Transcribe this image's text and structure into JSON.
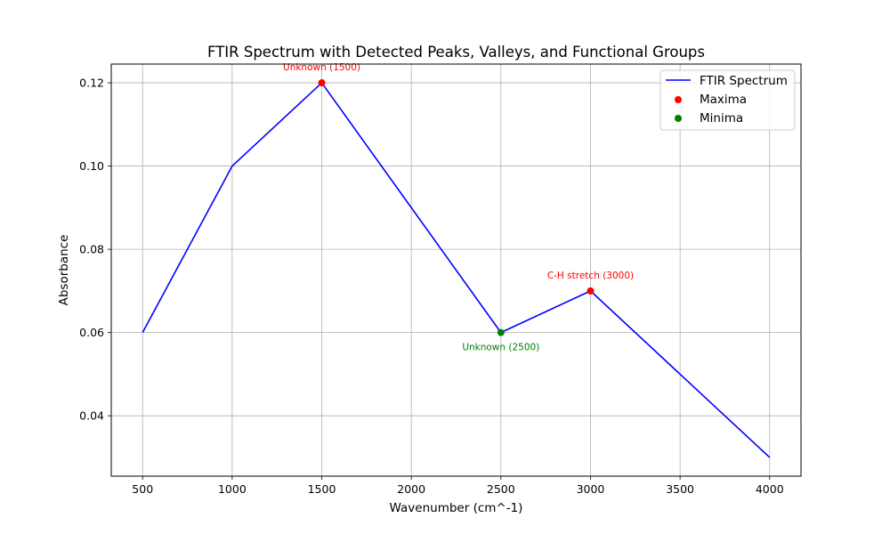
{
  "chart_data": {
    "type": "line",
    "title": "FTIR Spectrum with Detected Peaks, Valleys, and Functional Groups",
    "xlabel": "Wavenumber (cm^-1)",
    "ylabel": "Absorbance",
    "xlim": [
      325,
      4175
    ],
    "ylim": [
      0.0255,
      0.1245
    ],
    "grid": true,
    "legend_position": "top-right",
    "x_ticks": [
      500,
      1000,
      1500,
      2000,
      2500,
      3000,
      3500,
      4000
    ],
    "x_tick_labels": [
      "500",
      "1000",
      "1500",
      "2000",
      "2500",
      "3000",
      "3500",
      "4000"
    ],
    "y_ticks": [
      0.04,
      0.06,
      0.08,
      0.1,
      0.12
    ],
    "y_tick_labels": [
      "0.04",
      "0.06",
      "0.08",
      "0.10",
      "0.12"
    ],
    "series": [
      {
        "name": "FTIR Spectrum",
        "color": "#0000ff",
        "x": [
          500,
          1000,
          1500,
          2000,
          2500,
          3000,
          3500,
          4000
        ],
        "y": [
          0.06,
          0.1,
          0.12,
          0.09,
          0.06,
          0.07,
          0.05,
          0.03
        ]
      }
    ],
    "maxima": {
      "name": "Maxima",
      "color": "#ff0000",
      "points": [
        {
          "x": 1500,
          "y": 0.12,
          "label": "Unknown (1500)"
        },
        {
          "x": 3000,
          "y": 0.07,
          "label": "C-H stretch (3000)"
        }
      ]
    },
    "minima": {
      "name": "Minima",
      "color": "#008000",
      "points": [
        {
          "x": 2500,
          "y": 0.06,
          "label": "Unknown (2500)"
        }
      ]
    },
    "legend": [
      "FTIR Spectrum",
      "Maxima",
      "Minima"
    ]
  }
}
